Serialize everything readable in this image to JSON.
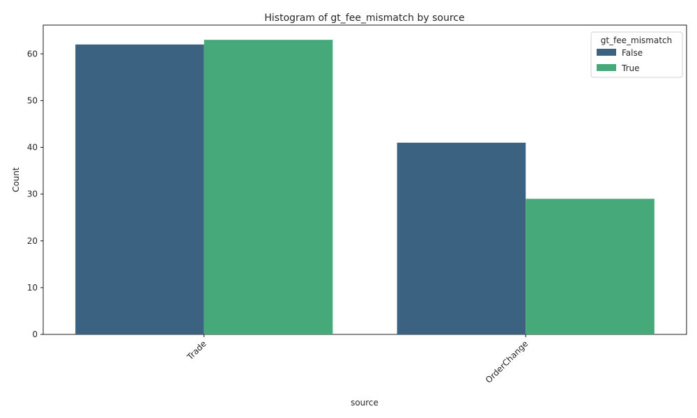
{
  "chart_data": {
    "type": "bar",
    "title": "Histogram of gt_fee_mismatch by source",
    "xlabel": "source",
    "ylabel": "Count",
    "categories": [
      "Trade",
      "OrderChange"
    ],
    "series": [
      {
        "name": "False",
        "values": [
          62,
          41
        ],
        "color": "#3b6381"
      },
      {
        "name": "True",
        "values": [
          63,
          29
        ],
        "color": "#46a97a"
      }
    ],
    "ylim": [
      0,
      66.15
    ],
    "yticks": [
      0,
      10,
      20,
      30,
      40,
      50,
      60
    ],
    "legend": {
      "title": "gt_fee_mismatch",
      "placement": "top-right"
    },
    "grid": false,
    "x_tick_rotation": 45
  }
}
